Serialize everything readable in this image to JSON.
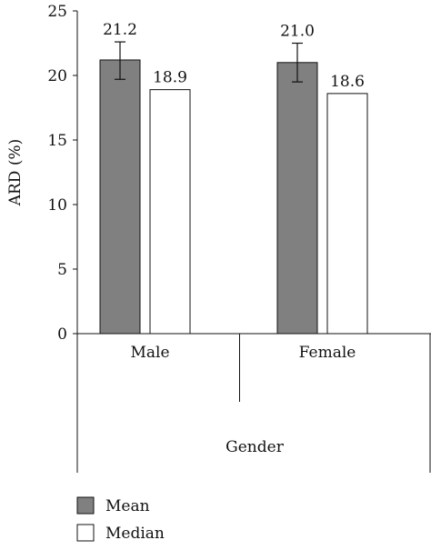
{
  "chart_data": {
    "type": "bar",
    "xlabel": "Gender",
    "ylabel": "ARD (%)",
    "ylim": [
      0,
      25
    ],
    "yticks": [
      0,
      5,
      10,
      15,
      20,
      25
    ],
    "categories": [
      "Male",
      "Female"
    ],
    "series": [
      {
        "name": "Mean",
        "values": [
          21.2,
          21.0
        ],
        "value_labels": [
          "21.2",
          "21.0"
        ],
        "error_low": [
          19.7,
          19.5
        ],
        "error_high": [
          22.6,
          22.5
        ],
        "color": "#808080"
      },
      {
        "name": "Median",
        "values": [
          18.9,
          18.6
        ],
        "value_labels": [
          "18.9",
          "18.6"
        ],
        "color": "#ffffff"
      }
    ],
    "grid": false,
    "legend_position": "bottom-left"
  }
}
